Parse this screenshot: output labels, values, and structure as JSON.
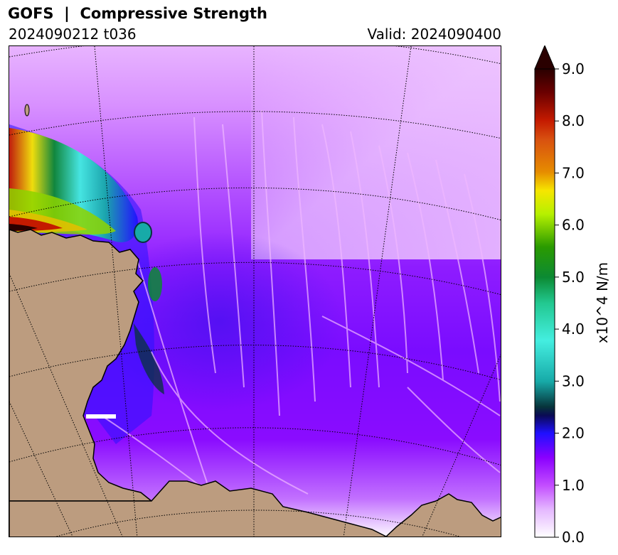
{
  "header": {
    "title": "GOFS  |  Compressive Strength",
    "run_label": "2024090212 t036",
    "valid_label": "Valid: 2024090400"
  },
  "colorbar": {
    "unit_label": "x10^4 N/m",
    "min": 0.0,
    "max": 9.0,
    "extend": "max",
    "tick_labels": [
      "0.0",
      "1.0",
      "2.0",
      "3.0",
      "4.0",
      "5.0",
      "6.0",
      "7.0",
      "8.0",
      "9.0"
    ],
    "colors": {
      "land": "#bc9c7f",
      "low": "#ffffff",
      "mid_low": "#c24dff",
      "mid": "#8a00ff",
      "blue": "#1f10ff",
      "dark_teal": "#07333a",
      "teal": "#17aaa8",
      "cyan": "#44eee0",
      "green": "#0c8a33",
      "lime": "#b6f000",
      "yellow": "#f6e600",
      "orange": "#e68c00",
      "red": "#c41a00",
      "max": "#2a0000"
    }
  }
}
